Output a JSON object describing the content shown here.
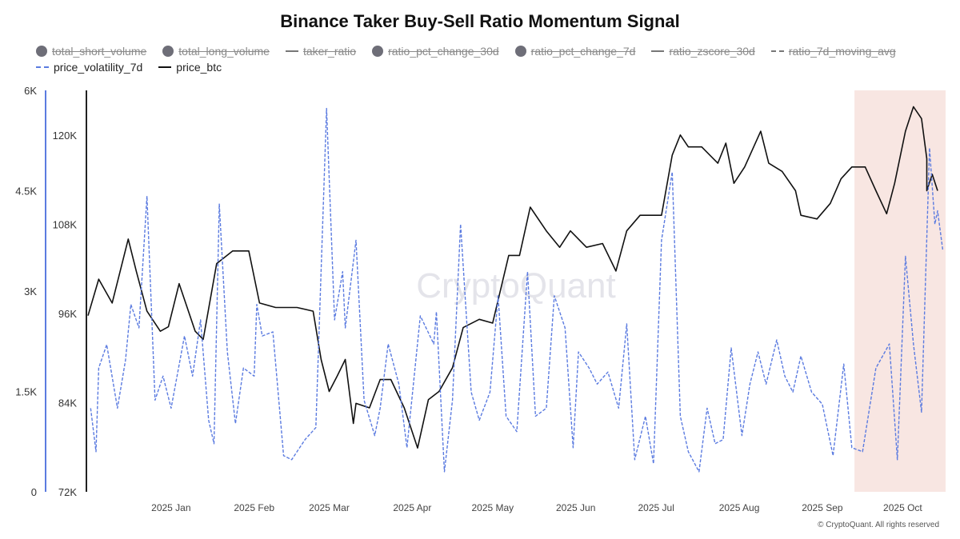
{
  "chart_data": {
    "type": "line",
    "title": "Binance Taker Buy-Sell Ratio Momentum Signal",
    "legend": [
      {
        "name": "total_short_volume",
        "marker": "dot",
        "hidden": true
      },
      {
        "name": "total_long_volume",
        "marker": "dot",
        "hidden": true
      },
      {
        "name": "taker_ratio",
        "marker": "line",
        "hidden": true
      },
      {
        "name": "ratio_pct_change_30d",
        "marker": "dot",
        "hidden": true
      },
      {
        "name": "ratio_pct_change_7d",
        "marker": "dot",
        "hidden": true
      },
      {
        "name": "ratio_zscore_30d",
        "marker": "line",
        "hidden": true
      },
      {
        "name": "ratio_7d_moving_avg",
        "marker": "dash",
        "hidden": true
      },
      {
        "name": "price_volatility_7d",
        "marker": "dash",
        "hidden": false
      },
      {
        "name": "price_btc",
        "marker": "line",
        "hidden": false
      }
    ],
    "x_start_date": "2024-12-01",
    "x_unit": "days since start",
    "xlim": [
      0,
      320
    ],
    "x_ticks": [
      {
        "day": 31,
        "label": "2025 Jan"
      },
      {
        "day": 62,
        "label": "2025 Feb"
      },
      {
        "day": 90,
        "label": "2025 Mar"
      },
      {
        "day": 121,
        "label": "2025 Apr"
      },
      {
        "day": 151,
        "label": "2025 May"
      },
      {
        "day": 182,
        "label": "2025 Jun"
      },
      {
        "day": 212,
        "label": "2025 Jul"
      },
      {
        "day": 243,
        "label": "2025 Aug"
      },
      {
        "day": 274,
        "label": "2025 Sep"
      },
      {
        "day": 304,
        "label": "2025 Oct"
      }
    ],
    "left_axis": {
      "ylim": [
        0,
        6000
      ],
      "ticks": [
        "0",
        "1.5K",
        "3K",
        "4.5K",
        "6K"
      ],
      "color": "#5b7be0"
    },
    "right_axis": {
      "ylim": [
        72000,
        126000
      ],
      "ticks": [
        "72K",
        "84K",
        "96K",
        "108K",
        "120K"
      ]
    },
    "highlight": {
      "from_day": 286,
      "to_day": 320,
      "color": "#f8e6e2"
    },
    "watermark": "CryptoQuant",
    "series": [
      {
        "name": "price_btc",
        "axis": "right",
        "color": "#111111",
        "style": "solid",
        "x": [
          0,
          4,
          9,
          15,
          18,
          22,
          27,
          30,
          34,
          40,
          43,
          48,
          54,
          60,
          64,
          70,
          78,
          84,
          87,
          90,
          93,
          96,
          99,
          100,
          105,
          109,
          113,
          118,
          123,
          127,
          131,
          136,
          140,
          146,
          151,
          157,
          161,
          165,
          171,
          176,
          180,
          186,
          192,
          197,
          201,
          206,
          214,
          218,
          221,
          224,
          229,
          235,
          238,
          241,
          245,
          251,
          254,
          259,
          264,
          266,
          272,
          277,
          281,
          285,
          290,
          294,
          298,
          301,
          305,
          308,
          311,
          313,
          313,
          315,
          317
        ],
        "y": [
          95.7,
          100.6,
          97.4,
          106,
          101.7,
          96.3,
          93.6,
          94.2,
          100,
          93.6,
          92.5,
          102.7,
          104.4,
          104.4,
          97.4,
          96.8,
          96.8,
          96.3,
          89.8,
          85.5,
          87.6,
          89.8,
          81.2,
          83.9,
          83.3,
          87.1,
          87.1,
          83.3,
          77.9,
          84.4,
          85.5,
          88.7,
          94.1,
          95.2,
          94.7,
          103.8,
          103.8,
          110.3,
          107.1,
          104.9,
          107.1,
          104.9,
          105.4,
          101.7,
          107.1,
          109.2,
          109.2,
          117.3,
          120,
          118.4,
          118.4,
          116.2,
          118.9,
          113.5,
          115.7,
          120.5,
          116.2,
          115.1,
          112.5,
          109.2,
          108.7,
          110.8,
          114.1,
          115.7,
          115.7,
          112.5,
          109.4,
          113.5,
          120.5,
          123.8,
          122.2,
          116.8,
          112.5,
          114.7,
          112.5
        ]
      },
      {
        "name": "price_volatility_7d",
        "axis": "left",
        "color": "#5b7be0",
        "style": "dashed",
        "x": [
          1,
          3,
          4,
          7,
          11,
          14,
          16,
          19,
          22,
          25,
          28,
          31,
          36,
          39,
          42,
          45,
          47,
          49,
          52,
          55,
          58,
          62,
          63,
          65,
          69,
          73,
          76,
          81,
          85,
          89,
          92,
          95,
          96,
          100,
          103,
          107,
          109,
          112,
          116,
          119,
          124,
          129,
          130,
          133,
          136,
          139,
          143,
          146,
          150,
          153,
          156,
          160,
          164,
          167,
          171,
          174,
          178,
          181,
          183,
          187,
          190,
          194,
          198,
          201,
          204,
          208,
          211,
          214,
          218,
          221,
          224,
          228,
          231,
          234,
          237,
          240,
          244,
          247,
          250,
          253,
          257,
          260,
          263,
          266,
          270,
          274,
          278,
          282,
          285,
          289,
          294,
          299,
          302,
          305,
          308,
          311,
          314,
          316,
          317,
          319
        ],
        "y": [
          1.25,
          0.6,
          1.85,
          2.2,
          1.25,
          1.97,
          2.8,
          2.45,
          4.42,
          1.37,
          1.73,
          1.25,
          2.33,
          1.73,
          2.57,
          1.07,
          0.72,
          4.3,
          2.09,
          1.02,
          1.85,
          1.73,
          2.8,
          2.33,
          2.39,
          0.54,
          0.48,
          0.78,
          0.96,
          5.73,
          2.57,
          3.29,
          2.45,
          3.76,
          1.37,
          0.84,
          1.25,
          2.21,
          1.61,
          0.66,
          2.63,
          2.21,
          2.69,
          0.3,
          1.37,
          4.0,
          1.49,
          1.07,
          1.49,
          2.93,
          1.13,
          0.9,
          3.29,
          1.13,
          1.25,
          2.93,
          2.45,
          0.66,
          2.09,
          1.85,
          1.61,
          1.79,
          1.25,
          2.51,
          0.48,
          1.13,
          0.42,
          3.76,
          4.78,
          1.13,
          0.6,
          0.3,
          1.25,
          0.72,
          0.78,
          2.15,
          0.84,
          1.61,
          2.09,
          1.61,
          2.27,
          1.73,
          1.49,
          2.03,
          1.49,
          1.31,
          0.54,
          1.91,
          0.66,
          0.6,
          1.85,
          2.21,
          0.48,
          3.52,
          2.21,
          1.19,
          5.14,
          4.0,
          4.2,
          3.6
        ]
      }
    ]
  },
  "footer": "© CryptoQuant. All rights reserved"
}
